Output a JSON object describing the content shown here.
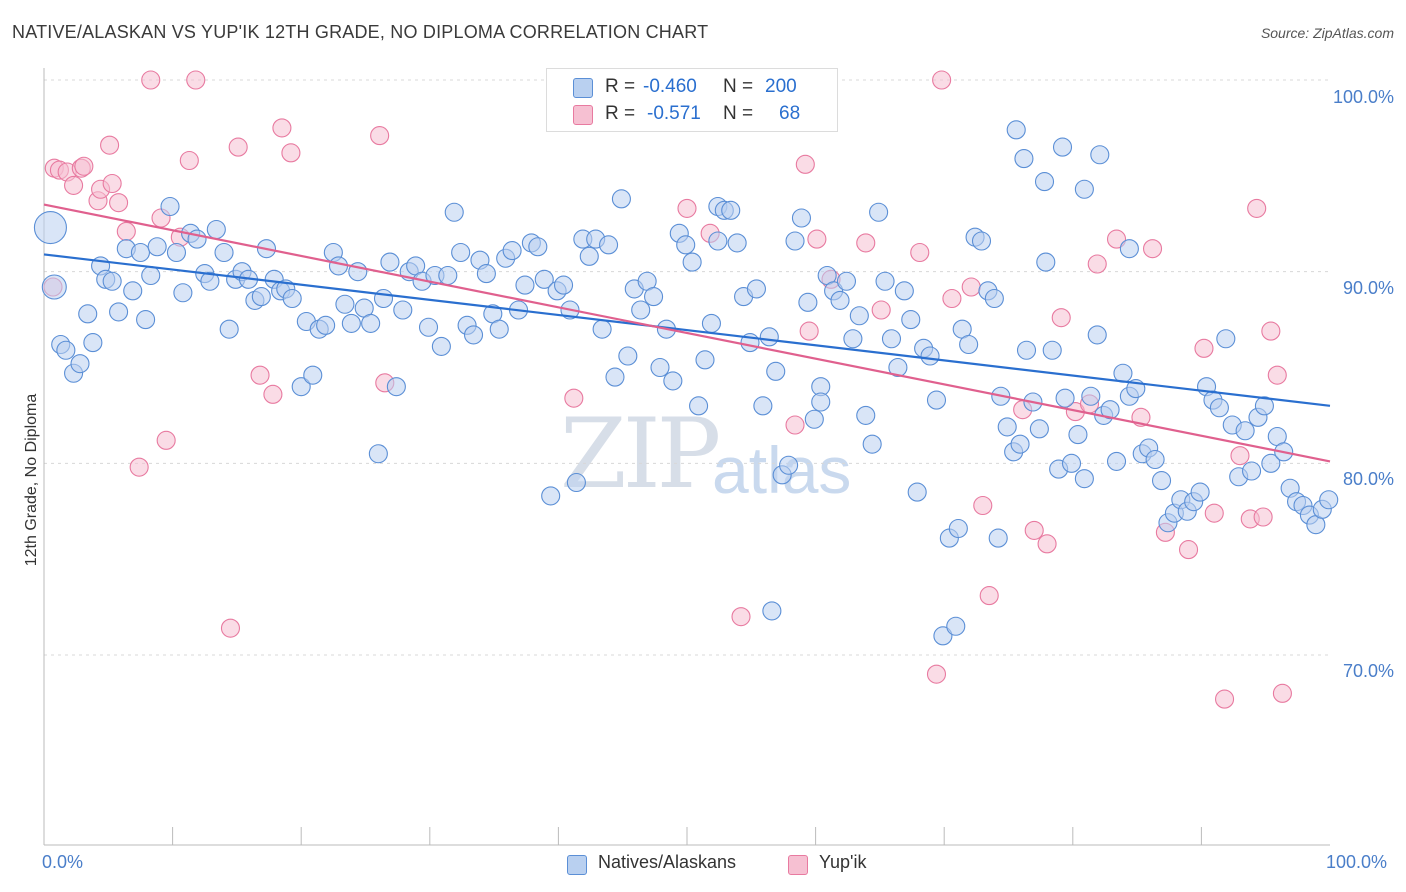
{
  "title": "NATIVE/ALASKAN VS YUP'IK 12TH GRADE, NO DIPLOMA CORRELATION CHART",
  "source": "Source: ZipAtlas.com",
  "watermark": {
    "zip": "ZIP",
    "atlas": "atlas"
  },
  "colors": {
    "blue": "#5b8fd6",
    "blue_fill": "#b9d0f0",
    "pink": "#e87aa0",
    "pink_fill": "#f6c0d2",
    "blue_line": "#2a6fcf",
    "pink_line": "#e0608e",
    "tick_text": "#4a7ec9"
  },
  "legend": {
    "row1": {
      "r_label": "R =",
      "r_value": "-0.460",
      "n_label": "N =",
      "n_value": "200"
    },
    "row2": {
      "r_label": "R =",
      "r_value": "-0.571",
      "n_label": "N =",
      "n_value": "68"
    }
  },
  "bottom_legend": {
    "blue": "Natives/Alaskans",
    "pink": "Yup'ik"
  },
  "chart_data": {
    "type": "scatter",
    "title": "NATIVE/ALASKAN VS YUP'IK 12TH GRADE, NO DIPLOMA CORRELATION CHART",
    "xlabel": "",
    "ylabel": "12th Grade, No Diploma",
    "xlim": [
      0,
      100
    ],
    "ylim": [
      59,
      102
    ],
    "x_ticks": [
      "0.0%",
      "100.0%"
    ],
    "y_ticks": [
      {
        "value": 100,
        "label": "100.0%"
      },
      {
        "value": 90,
        "label": "90.0%"
      },
      {
        "value": 80,
        "label": "80.0%"
      },
      {
        "value": 70,
        "label": "70.0%"
      }
    ],
    "grid": "horizontal-dashed",
    "legend_position": "top-center",
    "series": [
      {
        "name": "Natives/Alaskans",
        "trend": {
          "x": [
            0,
            100
          ],
          "y": [
            90.9,
            83.0
          ]
        },
        "points": [
          [
            0.5,
            92.3
          ],
          [
            0.8,
            89.2
          ],
          [
            1.3,
            86.2
          ],
          [
            1.7,
            85.9
          ],
          [
            2.3,
            84.7
          ],
          [
            2.8,
            85.2
          ],
          [
            3.4,
            87.8
          ],
          [
            3.8,
            86.3
          ],
          [
            4.4,
            90.3
          ],
          [
            4.8,
            89.6
          ],
          [
            5.3,
            89.5
          ],
          [
            5.8,
            87.9
          ],
          [
            6.4,
            91.2
          ],
          [
            6.9,
            89.0
          ],
          [
            7.5,
            91.0
          ],
          [
            7.9,
            87.5
          ],
          [
            8.3,
            89.8
          ],
          [
            8.8,
            91.3
          ],
          [
            9.8,
            93.4
          ],
          [
            10.3,
            91.0
          ],
          [
            10.8,
            88.9
          ],
          [
            11.4,
            92.0
          ],
          [
            11.9,
            91.7
          ],
          [
            12.5,
            89.9
          ],
          [
            12.9,
            89.5
          ],
          [
            13.4,
            92.2
          ],
          [
            14.0,
            91.0
          ],
          [
            14.4,
            87.0
          ],
          [
            14.9,
            89.6
          ],
          [
            15.4,
            90.0
          ],
          [
            15.9,
            89.6
          ],
          [
            16.4,
            88.5
          ],
          [
            16.9,
            88.7
          ],
          [
            17.3,
            91.2
          ],
          [
            17.9,
            89.6
          ],
          [
            18.4,
            89.0
          ],
          [
            18.8,
            89.1
          ],
          [
            19.3,
            88.6
          ],
          [
            20.0,
            84.0
          ],
          [
            20.4,
            87.4
          ],
          [
            20.9,
            84.6
          ],
          [
            21.4,
            87.0
          ],
          [
            21.9,
            87.2
          ],
          [
            22.5,
            91.0
          ],
          [
            22.9,
            90.3
          ],
          [
            23.4,
            88.3
          ],
          [
            23.9,
            87.3
          ],
          [
            24.4,
            90.0
          ],
          [
            24.9,
            88.1
          ],
          [
            25.4,
            87.3
          ],
          [
            26.0,
            80.5
          ],
          [
            26.4,
            88.6
          ],
          [
            26.9,
            90.5
          ],
          [
            27.4,
            84.0
          ],
          [
            27.9,
            88.0
          ],
          [
            28.4,
            90.0
          ],
          [
            28.9,
            90.3
          ],
          [
            29.4,
            89.5
          ],
          [
            29.9,
            87.1
          ],
          [
            30.4,
            89.8
          ],
          [
            30.9,
            86.1
          ],
          [
            31.4,
            89.8
          ],
          [
            31.9,
            93.1
          ],
          [
            32.4,
            91.0
          ],
          [
            32.9,
            87.2
          ],
          [
            33.4,
            86.7
          ],
          [
            33.9,
            90.6
          ],
          [
            34.4,
            89.9
          ],
          [
            34.9,
            87.8
          ],
          [
            35.4,
            87.0
          ],
          [
            35.9,
            90.7
          ],
          [
            36.4,
            91.1
          ],
          [
            36.9,
            88.0
          ],
          [
            37.4,
            89.3
          ],
          [
            37.9,
            91.5
          ],
          [
            38.4,
            91.3
          ],
          [
            38.9,
            89.6
          ],
          [
            39.4,
            78.3
          ],
          [
            39.9,
            89.0
          ],
          [
            40.4,
            89.3
          ],
          [
            40.9,
            88.0
          ],
          [
            41.4,
            79.0
          ],
          [
            41.9,
            91.7
          ],
          [
            42.4,
            90.8
          ],
          [
            42.9,
            91.7
          ],
          [
            43.4,
            87.0
          ],
          [
            43.9,
            91.4
          ],
          [
            44.4,
            84.5
          ],
          [
            44.9,
            93.8
          ],
          [
            45.4,
            85.6
          ],
          [
            45.9,
            89.1
          ],
          [
            46.4,
            88.0
          ],
          [
            46.9,
            89.5
          ],
          [
            47.4,
            88.7
          ],
          [
            47.9,
            85.0
          ],
          [
            48.4,
            87.0
          ],
          [
            48.9,
            84.3
          ],
          [
            49.4,
            92.0
          ],
          [
            49.9,
            91.4
          ],
          [
            50.4,
            90.5
          ],
          [
            50.9,
            83.0
          ],
          [
            51.4,
            85.4
          ],
          [
            51.9,
            87.3
          ],
          [
            52.4,
            93.4
          ],
          [
            52.9,
            93.2
          ],
          [
            53.4,
            93.2
          ],
          [
            53.9,
            91.5
          ],
          [
            54.4,
            88.7
          ],
          [
            54.9,
            86.3
          ],
          [
            55.4,
            89.1
          ],
          [
            55.9,
            83.0
          ],
          [
            56.4,
            86.6
          ],
          [
            56.9,
            84.8
          ],
          [
            57.4,
            79.4
          ],
          [
            57.9,
            79.9
          ],
          [
            58.4,
            91.6
          ],
          [
            58.9,
            92.8
          ],
          [
            59.4,
            88.4
          ],
          [
            59.9,
            82.3
          ],
          [
            60.4,
            84.0
          ],
          [
            60.9,
            89.8
          ],
          [
            61.4,
            89.0
          ],
          [
            61.9,
            88.5
          ],
          [
            62.4,
            89.5
          ],
          [
            62.9,
            86.5
          ],
          [
            63.4,
            87.7
          ],
          [
            63.9,
            82.5
          ],
          [
            64.4,
            81.0
          ],
          [
            64.9,
            93.1
          ],
          [
            65.4,
            89.5
          ],
          [
            65.9,
            86.5
          ],
          [
            66.4,
            85.0
          ],
          [
            66.9,
            89.0
          ],
          [
            67.4,
            87.5
          ],
          [
            67.9,
            78.5
          ],
          [
            68.4,
            86.0
          ],
          [
            68.9,
            85.6
          ],
          [
            69.4,
            83.3
          ],
          [
            69.9,
            71.0
          ],
          [
            70.4,
            76.1
          ],
          [
            70.9,
            71.5
          ],
          [
            71.4,
            87.0
          ],
          [
            71.9,
            86.2
          ],
          [
            72.4,
            91.8
          ],
          [
            72.9,
            91.6
          ],
          [
            73.4,
            89.0
          ],
          [
            73.9,
            88.6
          ],
          [
            74.4,
            83.5
          ],
          [
            74.9,
            81.9
          ],
          [
            75.4,
            80.6
          ],
          [
            75.9,
            81.0
          ],
          [
            76.4,
            85.9
          ],
          [
            76.9,
            83.2
          ],
          [
            77.4,
            81.8
          ],
          [
            77.9,
            90.5
          ],
          [
            78.4,
            85.9
          ],
          [
            78.9,
            79.7
          ],
          [
            79.4,
            83.4
          ],
          [
            79.9,
            80.0
          ],
          [
            80.4,
            81.5
          ],
          [
            80.9,
            79.2
          ],
          [
            81.4,
            83.5
          ],
          [
            81.9,
            86.7
          ],
          [
            82.4,
            82.5
          ],
          [
            82.9,
            82.8
          ],
          [
            83.4,
            80.1
          ],
          [
            83.9,
            84.7
          ],
          [
            84.4,
            83.5
          ],
          [
            84.9,
            83.9
          ],
          [
            85.4,
            80.5
          ],
          [
            85.9,
            80.8
          ],
          [
            86.4,
            80.2
          ],
          [
            86.9,
            79.1
          ],
          [
            87.4,
            76.9
          ],
          [
            87.9,
            77.4
          ],
          [
            88.4,
            78.1
          ],
          [
            88.9,
            77.5
          ],
          [
            89.4,
            78.0
          ],
          [
            89.9,
            78.5
          ],
          [
            90.4,
            84.0
          ],
          [
            90.9,
            83.3
          ],
          [
            91.4,
            82.9
          ],
          [
            91.9,
            86.5
          ],
          [
            92.4,
            82.0
          ],
          [
            92.9,
            79.3
          ],
          [
            93.4,
            81.7
          ],
          [
            93.9,
            79.6
          ],
          [
            94.4,
            82.4
          ],
          [
            94.9,
            83.0
          ],
          [
            95.4,
            80.0
          ],
          [
            95.9,
            81.4
          ],
          [
            96.4,
            80.6
          ],
          [
            96.9,
            78.7
          ],
          [
            97.4,
            78.0
          ],
          [
            97.9,
            77.8
          ],
          [
            98.4,
            77.3
          ],
          [
            98.9,
            76.8
          ],
          [
            99.4,
            77.6
          ],
          [
            99.9,
            78.1
          ],
          [
            56.6,
            72.3
          ],
          [
            60.4,
            83.2
          ],
          [
            52.4,
            91.6
          ],
          [
            74.2,
            76.1
          ],
          [
            71.1,
            76.6
          ],
          [
            80.9,
            94.3
          ],
          [
            75.6,
            97.4
          ],
          [
            76.2,
            95.9
          ],
          [
            77.8,
            94.7
          ],
          [
            79.2,
            96.5
          ],
          [
            82.1,
            96.1
          ],
          [
            84.4,
            91.2
          ]
        ]
      },
      {
        "name": "Yup'ik",
        "trend": {
          "x": [
            0,
            100
          ],
          "y": [
            93.5,
            80.1
          ]
        },
        "points": [
          [
            0.7,
            89.2
          ],
          [
            0.8,
            95.4
          ],
          [
            1.2,
            95.3
          ],
          [
            1.8,
            95.2
          ],
          [
            2.3,
            94.5
          ],
          [
            2.9,
            95.4
          ],
          [
            3.1,
            95.5
          ],
          [
            4.2,
            93.7
          ],
          [
            4.4,
            94.3
          ],
          [
            5.1,
            96.6
          ],
          [
            5.3,
            94.6
          ],
          [
            5.8,
            93.6
          ],
          [
            6.4,
            92.1
          ],
          [
            7.4,
            79.8
          ],
          [
            8.3,
            100.0
          ],
          [
            9.1,
            92.8
          ],
          [
            9.5,
            81.2
          ],
          [
            10.6,
            91.8
          ],
          [
            11.3,
            95.8
          ],
          [
            11.8,
            100.0
          ],
          [
            14.5,
            71.4
          ],
          [
            15.1,
            96.5
          ],
          [
            16.8,
            84.6
          ],
          [
            17.8,
            83.6
          ],
          [
            18.5,
            97.5
          ],
          [
            19.2,
            96.2
          ],
          [
            26.1,
            97.1
          ],
          [
            26.5,
            84.2
          ],
          [
            41.2,
            83.4
          ],
          [
            50.0,
            93.3
          ],
          [
            51.8,
            92.0
          ],
          [
            54.2,
            72.0
          ],
          [
            58.4,
            82.0
          ],
          [
            59.2,
            95.6
          ],
          [
            59.5,
            86.9
          ],
          [
            60.1,
            91.7
          ],
          [
            61.2,
            89.6
          ],
          [
            63.9,
            91.5
          ],
          [
            65.1,
            88.0
          ],
          [
            68.1,
            91.0
          ],
          [
            69.4,
            69.0
          ],
          [
            69.8,
            100.0
          ],
          [
            70.6,
            88.6
          ],
          [
            72.1,
            89.2
          ],
          [
            73.0,
            77.8
          ],
          [
            73.5,
            73.1
          ],
          [
            76.1,
            82.8
          ],
          [
            77.0,
            76.5
          ],
          [
            78.0,
            75.8
          ],
          [
            79.1,
            87.6
          ],
          [
            80.2,
            82.7
          ],
          [
            81.3,
            83.1
          ],
          [
            81.9,
            90.4
          ],
          [
            83.4,
            91.7
          ],
          [
            85.3,
            82.4
          ],
          [
            86.2,
            91.2
          ],
          [
            87.2,
            76.4
          ],
          [
            89.0,
            75.5
          ],
          [
            90.2,
            86.0
          ],
          [
            91.0,
            77.4
          ],
          [
            91.8,
            67.7
          ],
          [
            93.0,
            80.4
          ],
          [
            93.8,
            77.1
          ],
          [
            94.3,
            93.3
          ],
          [
            94.8,
            77.2
          ],
          [
            95.4,
            86.9
          ],
          [
            95.9,
            84.6
          ],
          [
            96.3,
            68.0
          ]
        ]
      }
    ]
  }
}
